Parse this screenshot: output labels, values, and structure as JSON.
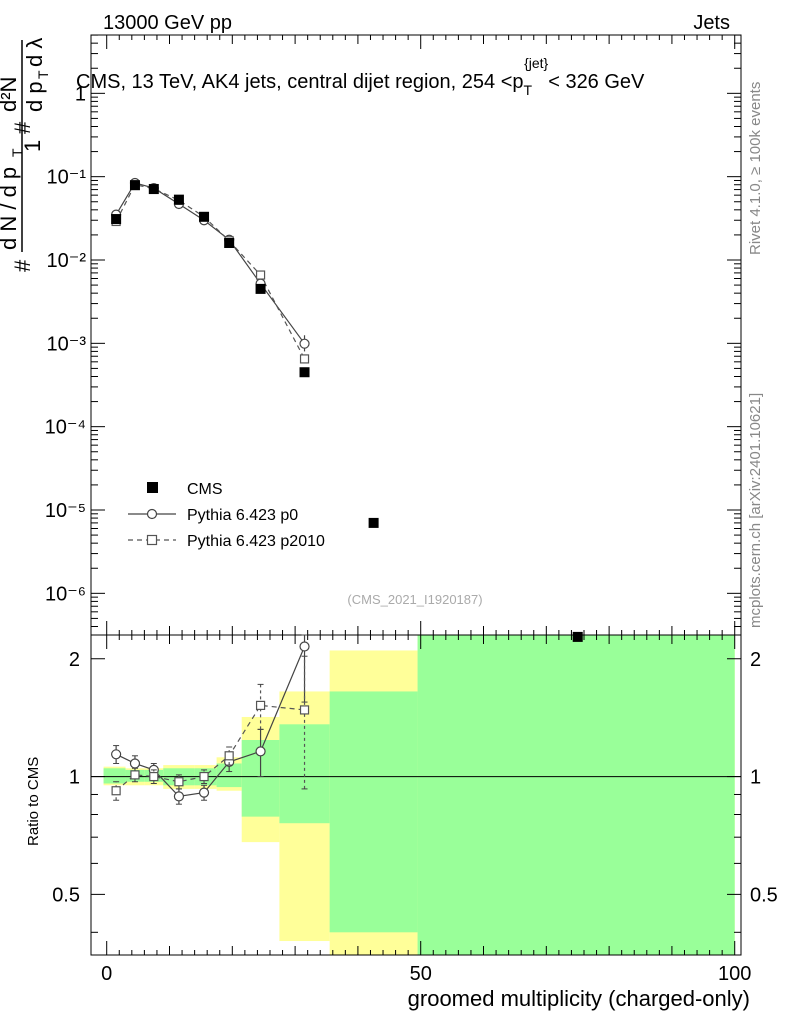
{
  "header": {
    "left": "13000 GeV pp",
    "right": "Jets"
  },
  "title_parts": {
    "pre": "CMS, 13 TeV, AK4 jets, central dijet region, 254 <p",
    "sub": "T",
    "sup": "{jet}",
    "post": "< 326 GeV"
  },
  "watermark": "(CMS_2021_I1920187)",
  "side_labels": {
    "rivet": "Rivet 4.1.0, ≥ 100k events",
    "mcplots": "mcplots.cern.ch [arXiv:2401.10621]"
  },
  "ylabel_main": "1/N dN/dp_T dλ (rendered as formula)",
  "ylabel_ratio": "Ratio to CMS",
  "xlabel": "groomed multiplicity (charged-only)",
  "legend": {
    "cms": "CMS",
    "p0": "Pythia 6.423 p0",
    "p2010": "Pythia 6.423 p2010"
  },
  "main_yticks": [
    "1",
    "10⁻¹",
    "10⁻²",
    "10⁻³",
    "10⁻⁴",
    "10⁻⁵",
    "10⁻⁶"
  ],
  "ratio_yticks": [
    "2",
    "1",
    "0.5"
  ],
  "xticks": [
    "0",
    "50",
    "100"
  ],
  "colors": {
    "band_inner": "#99ff99",
    "band_outer": "#ffff99",
    "data": "#000000",
    "mc1": "#444444",
    "mc2": "#555555"
  },
  "chart_data": {
    "type": "scatter",
    "xlim": [
      -2.5,
      101
    ],
    "main_ylim_log10": [
      -6.5,
      0.7
    ],
    "main_yscale": "log",
    "ratio_ylim": [
      0.35,
      2.3
    ],
    "ratio_yscale": "log",
    "cms": {
      "x": [
        1.5,
        4.5,
        7.5,
        11.5,
        15.5,
        19.5,
        24.5,
        31.5,
        42.5,
        75
      ],
      "y": [
        0.031,
        0.079,
        0.071,
        0.053,
        0.033,
        0.016,
        0.0045,
        0.00045,
        7e-06,
        3e-07
      ]
    },
    "series": [
      {
        "name": "Pythia 6.423 p0",
        "x": [
          1.5,
          4.5,
          7.5,
          11.5,
          15.5,
          19.5,
          24.5,
          31.5
        ],
        "y": [
          0.035,
          0.084,
          0.073,
          0.047,
          0.03,
          0.0175,
          0.0052,
          0.00099
        ],
        "ratio": [
          1.14,
          1.08,
          1.04,
          0.89,
          0.91,
          1.09,
          1.16,
          2.15
        ],
        "ratio_err": [
          0.06,
          0.05,
          0.04,
          0.04,
          0.04,
          0.06,
          0.16,
          0.6
        ]
      },
      {
        "name": "Pythia 6.423 p2010",
        "x": [
          1.5,
          4.5,
          7.5,
          11.5,
          15.5,
          19.5,
          24.5,
          31.5
        ],
        "y": [
          0.029,
          0.08,
          0.072,
          0.052,
          0.033,
          0.017,
          0.0066,
          0.00065
        ],
        "ratio": [
          0.92,
          1.01,
          1.0,
          0.97,
          1.0,
          1.13,
          1.52,
          1.48
        ],
        "ratio_err": [
          0.05,
          0.04,
          0.04,
          0.04,
          0.04,
          0.06,
          0.2,
          0.55
        ]
      }
    ],
    "uncertainty_bands": [
      {
        "x0": -0.5,
        "x1": 3,
        "inner": [
          0.96,
          1.05
        ],
        "outer": [
          0.95,
          1.06
        ]
      },
      {
        "x0": 3,
        "x1": 6,
        "inner": [
          0.97,
          1.04
        ],
        "outer": [
          0.95,
          1.05
        ]
      },
      {
        "x0": 6,
        "x1": 9,
        "inner": [
          0.97,
          1.04
        ],
        "outer": [
          0.95,
          1.05
        ]
      },
      {
        "x0": 9,
        "x1": 14,
        "inner": [
          0.95,
          1.05
        ],
        "outer": [
          0.93,
          1.07
        ]
      },
      {
        "x0": 14,
        "x1": 17.5,
        "inner": [
          0.95,
          1.05
        ],
        "outer": [
          0.93,
          1.07
        ]
      },
      {
        "x0": 17.5,
        "x1": 21.5,
        "inner": [
          0.94,
          1.08
        ],
        "outer": [
          0.92,
          1.12
        ]
      },
      {
        "x0": 21.5,
        "x1": 27.5,
        "inner": [
          0.79,
          1.24
        ],
        "outer": [
          0.68,
          1.42
        ]
      },
      {
        "x0": 27.5,
        "x1": 35.5,
        "inner": [
          0.76,
          1.36
        ],
        "outer": [
          0.38,
          1.65
        ]
      },
      {
        "x0": 35.5,
        "x1": 49.5,
        "inner": [
          0.4,
          1.65
        ],
        "outer": [
          0.35,
          2.1
        ]
      },
      {
        "x0": 49.5,
        "x1": 100,
        "inner": [
          0.35,
          2.3
        ],
        "outer": [
          0.35,
          2.3
        ]
      }
    ]
  }
}
